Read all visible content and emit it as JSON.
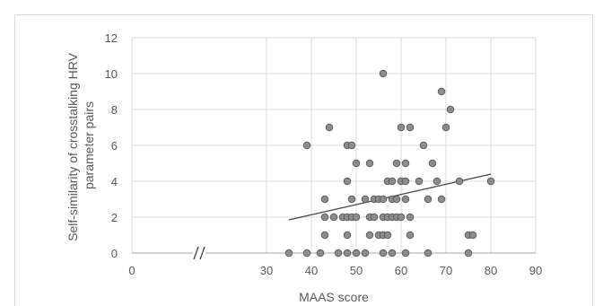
{
  "chart_data": {
    "type": "scatter",
    "title": "",
    "xlabel": "MAAS score",
    "ylabel_lines": [
      "Self-similarity of crosstalking HRV",
      "parameter pairs"
    ],
    "xlim": [
      0,
      90
    ],
    "ylim": [
      0,
      12
    ],
    "x_ticks": [
      0,
      30,
      40,
      50,
      60,
      70,
      80,
      90
    ],
    "y_ticks": [
      0,
      2,
      4,
      6,
      8,
      10,
      12
    ],
    "axis_break": true,
    "grid": true,
    "marker_color": "#8c8c8c",
    "marker_edge": "#5a5a5a",
    "trendline": {
      "x": [
        35,
        80
      ],
      "y": [
        1.85,
        4.4
      ],
      "color": "#404040"
    },
    "points": [
      [
        35,
        0
      ],
      [
        39,
        0
      ],
      [
        39,
        6
      ],
      [
        42,
        0
      ],
      [
        43,
        1
      ],
      [
        43,
        2
      ],
      [
        43,
        3
      ],
      [
        44,
        7
      ],
      [
        45,
        2
      ],
      [
        46,
        0
      ],
      [
        47,
        2
      ],
      [
        48,
        0
      ],
      [
        48,
        1
      ],
      [
        48,
        2
      ],
      [
        48,
        4
      ],
      [
        48,
        6
      ],
      [
        49,
        2
      ],
      [
        49,
        3
      ],
      [
        49,
        6
      ],
      [
        50,
        0
      ],
      [
        50,
        2
      ],
      [
        50,
        5
      ],
      [
        52,
        0
      ],
      [
        52,
        3
      ],
      [
        53,
        1
      ],
      [
        53,
        2
      ],
      [
        53,
        5
      ],
      [
        54,
        2
      ],
      [
        54,
        3
      ],
      [
        55,
        1
      ],
      [
        55,
        3
      ],
      [
        56,
        0
      ],
      [
        56,
        1
      ],
      [
        56,
        2
      ],
      [
        56,
        3
      ],
      [
        56,
        10
      ],
      [
        57,
        1
      ],
      [
        57,
        2
      ],
      [
        57,
        4
      ],
      [
        58,
        0
      ],
      [
        58,
        2
      ],
      [
        58,
        3
      ],
      [
        58,
        4
      ],
      [
        59,
        2
      ],
      [
        59,
        3
      ],
      [
        59,
        5
      ],
      [
        60,
        2
      ],
      [
        60,
        4
      ],
      [
        60,
        7
      ],
      [
        61,
        0
      ],
      [
        61,
        3
      ],
      [
        61,
        4
      ],
      [
        61,
        5
      ],
      [
        62,
        1
      ],
      [
        62,
        2
      ],
      [
        62,
        7
      ],
      [
        64,
        4
      ],
      [
        65,
        6
      ],
      [
        66,
        0
      ],
      [
        66,
        3
      ],
      [
        67,
        5
      ],
      [
        68,
        4
      ],
      [
        69,
        3
      ],
      [
        69,
        9
      ],
      [
        70,
        7
      ],
      [
        71,
        8
      ],
      [
        73,
        4
      ],
      [
        75,
        0
      ],
      [
        75,
        1
      ],
      [
        76,
        1
      ],
      [
        80,
        4
      ]
    ]
  }
}
